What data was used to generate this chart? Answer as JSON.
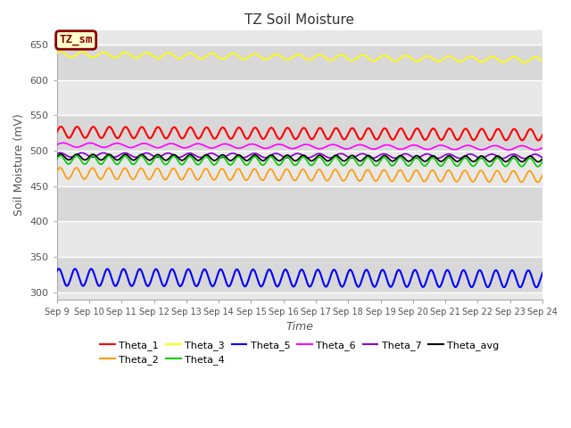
{
  "title": "TZ Soil Moisture",
  "xlabel": "Time",
  "ylabel": "Soil Moisture (mV)",
  "ylim": [
    290,
    670
  ],
  "xlim": [
    0,
    360
  ],
  "x_tick_labels": [
    "Sep 9",
    "Sep 10",
    "Sep 11",
    "Sep 12",
    "Sep 13",
    "Sep 14",
    "Sep 15",
    "Sep 16",
    "Sep 17",
    "Sep 18",
    "Sep 19",
    "Sep 20",
    "Sep 21",
    "Sep 22",
    "Sep 23",
    "Sep 24"
  ],
  "tz_sm_label": "TZ_sm",
  "tz_sm_bg": "#ffffcc",
  "tz_sm_border": "#880000",
  "plot_bg": "#e8e8e8",
  "fig_bg": "#ffffff",
  "lines": {
    "Theta_1": {
      "color": "#ff0000",
      "base": 526,
      "trend": -0.01,
      "amp": 8,
      "freq": 2.0,
      "phase": 0.0
    },
    "Theta_2": {
      "color": "#ff9900",
      "base": 468,
      "trend": -0.013,
      "amp": 8,
      "freq": 2.0,
      "phase": 0.3
    },
    "Theta_3": {
      "color": "#ffff00",
      "base": 636,
      "trend": -0.022,
      "amp": 4,
      "freq": 1.5,
      "phase": 0.5
    },
    "Theta_4": {
      "color": "#00cc00",
      "base": 487,
      "trend": -0.01,
      "amp": 6,
      "freq": 2.0,
      "phase": 0.2
    },
    "Theta_5": {
      "color": "#0000ff",
      "base": 321,
      "trend": -0.006,
      "amp": 12,
      "freq": 2.0,
      "phase": 0.8
    },
    "Theta_6": {
      "color": "#ff00ff",
      "base": 508,
      "trend": -0.012,
      "amp": 3,
      "freq": 1.2,
      "phase": 0.1
    },
    "Theta_7": {
      "color": "#8800cc",
      "base": 494,
      "trend": -0.006,
      "amp": 3,
      "freq": 1.5,
      "phase": 0.6
    },
    "Theta_avg": {
      "color": "#000000",
      "base": 491,
      "trend": -0.008,
      "amp": 4,
      "freq": 2.0,
      "phase": 0.1
    }
  },
  "legend_order": [
    "Theta_1",
    "Theta_2",
    "Theta_3",
    "Theta_4",
    "Theta_5",
    "Theta_6",
    "Theta_7",
    "Theta_avg"
  ],
  "yticks": [
    300,
    350,
    400,
    450,
    500,
    550,
    600,
    650
  ],
  "band_colors": [
    "#d8d8d8",
    "#e8e8e8"
  ]
}
